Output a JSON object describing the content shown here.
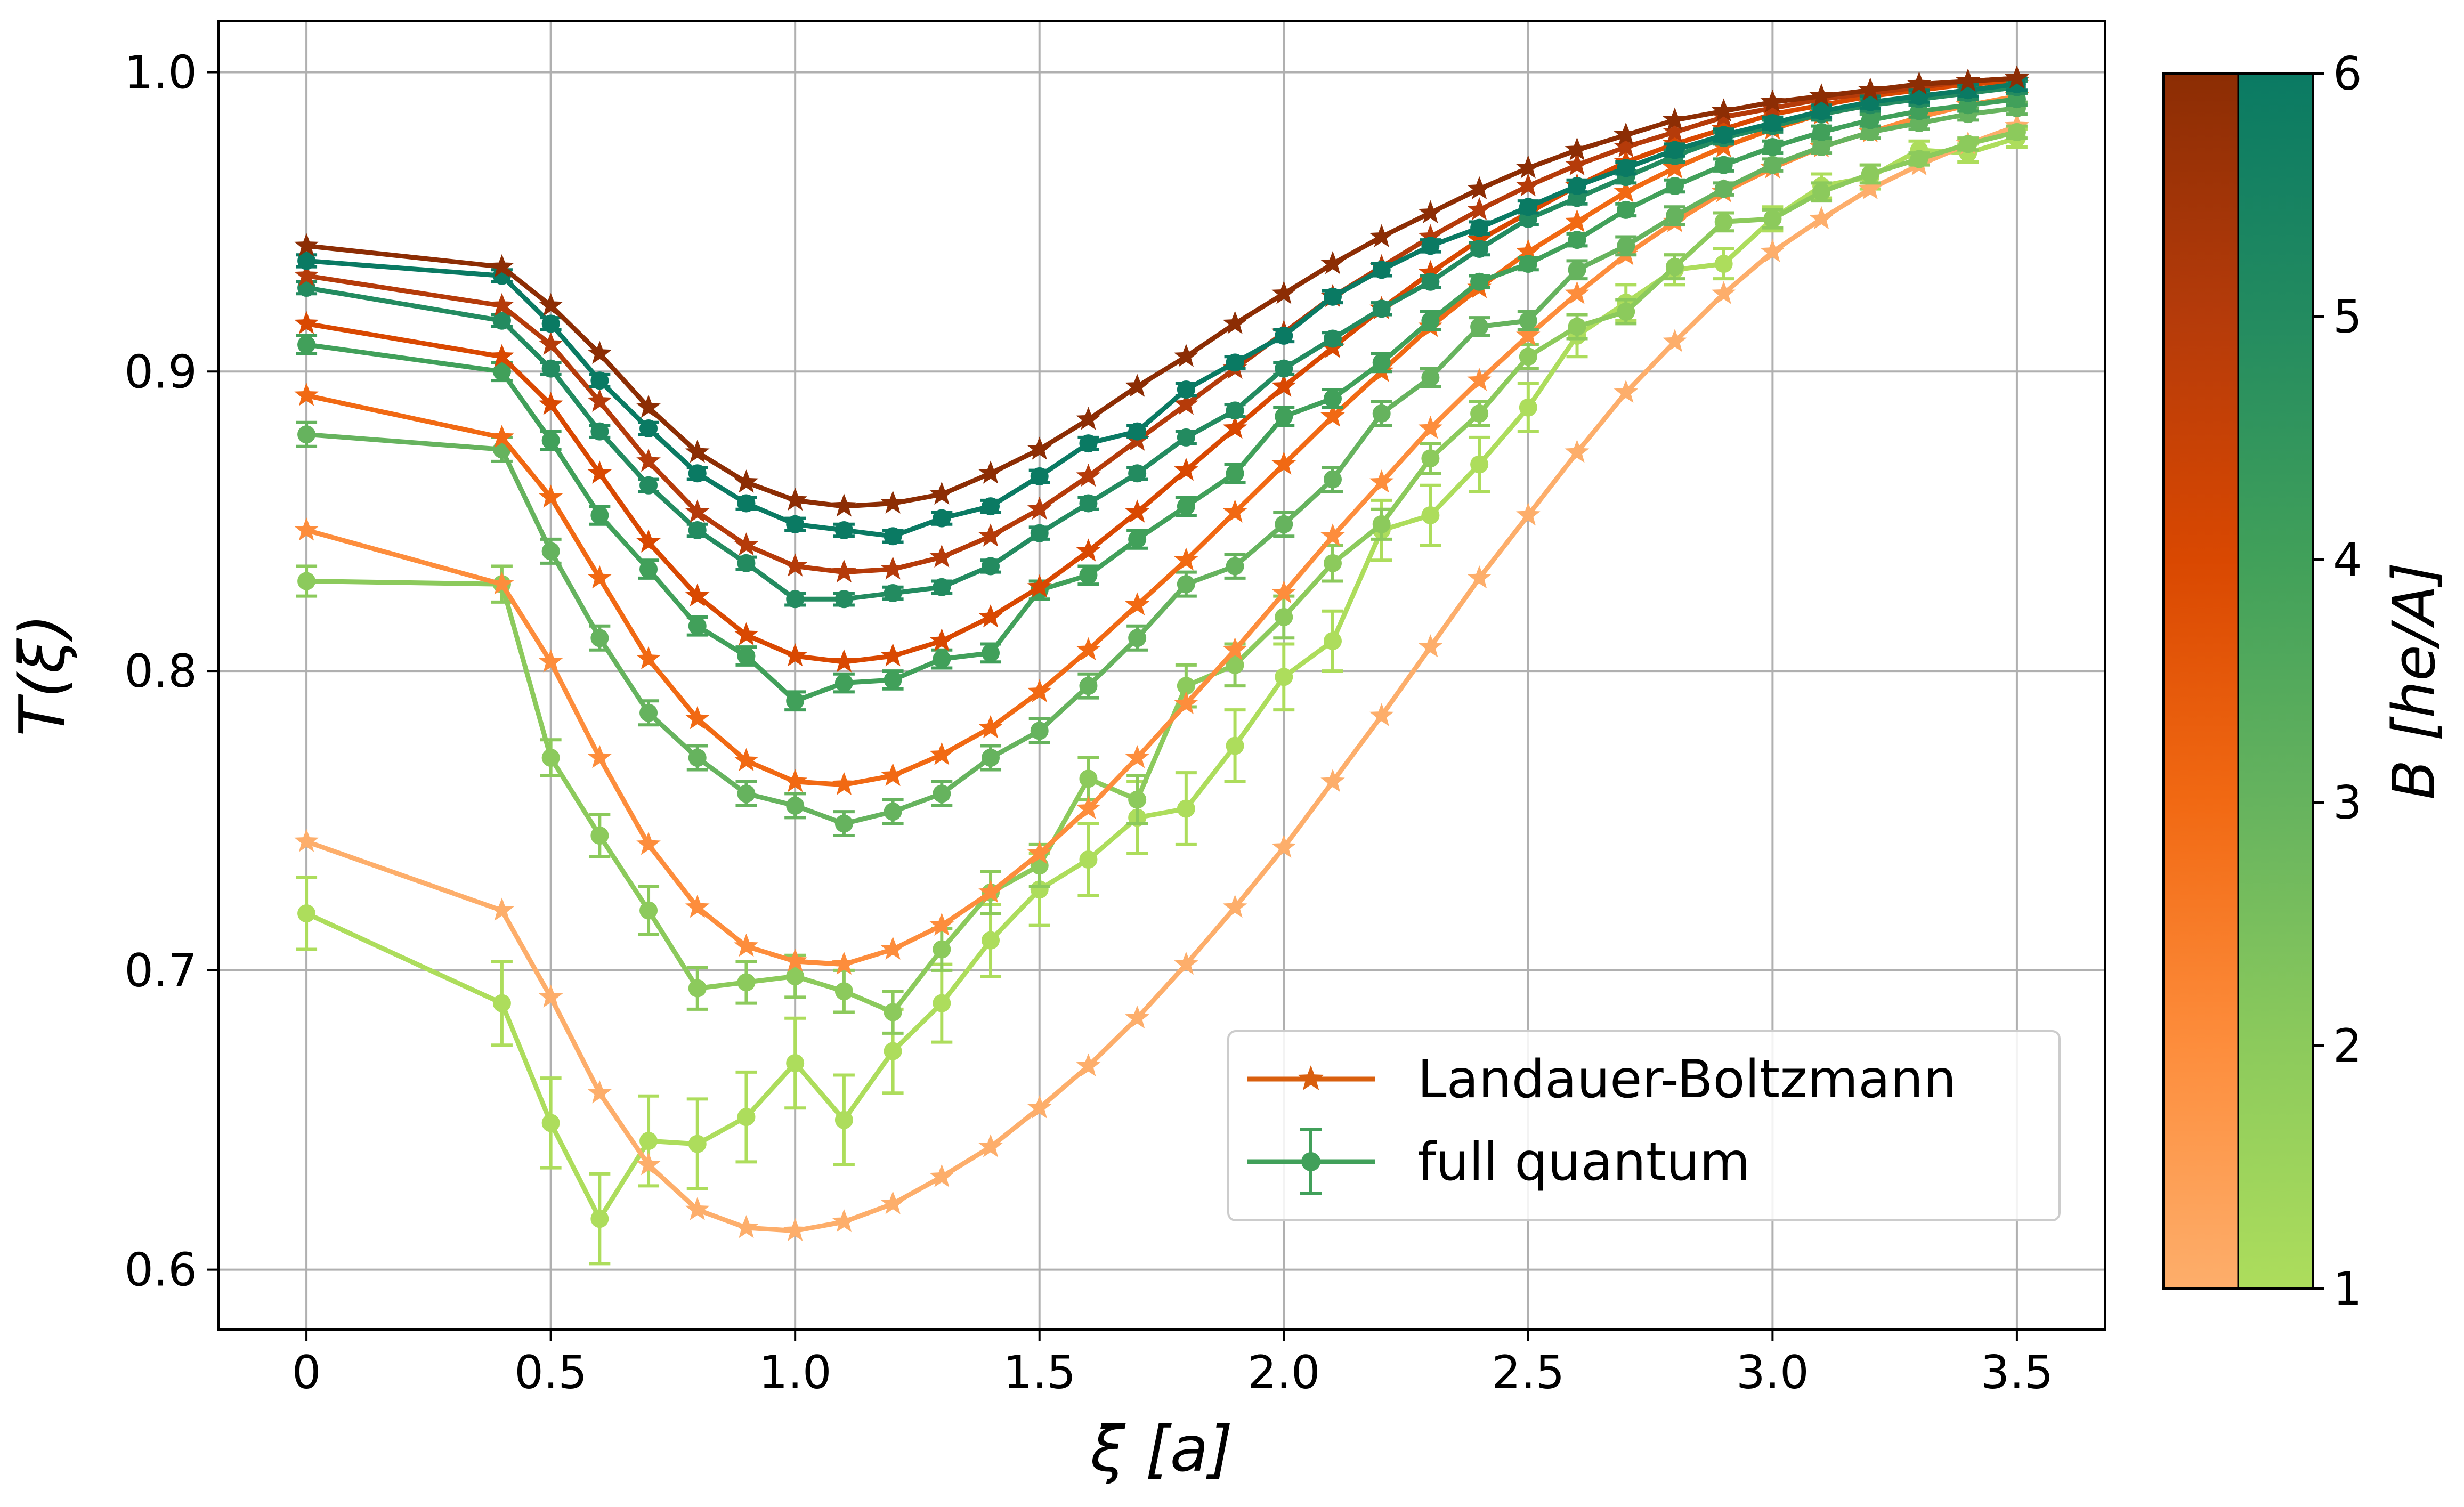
{
  "chart_data": {
    "type": "line",
    "xlabel": "ξ [a]",
    "ylabel": "T(ξ)",
    "xlim": [
      -0.18,
      3.68
    ],
    "ylim": [
      0.58,
      1.017
    ],
    "x_ticks": [
      "0",
      "0.5",
      "1.0",
      "1.5",
      "2.0",
      "2.5",
      "3.0",
      "3.5"
    ],
    "x_tick_values": [
      0,
      0.5,
      1.0,
      1.5,
      2.0,
      2.5,
      3.0,
      3.5
    ],
    "y_ticks": [
      "0.6",
      "0.7",
      "0.8",
      "0.9",
      "1.0"
    ],
    "y_tick_values": [
      0.6,
      0.7,
      0.8,
      0.9,
      1.0
    ],
    "grid": true,
    "legend_position": "lower-right",
    "legend": [
      {
        "label": "Landauer-Boltzmann",
        "color": "#d95f0e",
        "marker": "star"
      },
      {
        "label": "full quantum",
        "color": "#41a05a",
        "marker": "circle-errorbar"
      }
    ],
    "x": [
      0,
      0.4,
      0.5,
      0.6,
      0.7,
      0.8,
      0.9,
      1.0,
      1.1,
      1.2,
      1.3,
      1.4,
      1.5,
      1.6,
      1.7,
      1.8,
      1.9,
      2.0,
      2.1,
      2.2,
      2.3,
      2.4,
      2.5,
      2.6,
      2.7,
      2.8,
      2.9,
      3.0,
      3.1,
      3.2,
      3.3,
      3.4,
      3.5
    ],
    "series_landauer_boltzmann": [
      {
        "name": "B=1",
        "color": "#fdae6b",
        "values": [
          0.743,
          0.72,
          0.691,
          0.659,
          0.635,
          0.62,
          0.614,
          0.613,
          0.616,
          0.622,
          0.631,
          0.641,
          0.654,
          0.668,
          0.684,
          0.702,
          0.721,
          0.741,
          0.763,
          0.785,
          0.808,
          0.831,
          0.852,
          0.873,
          0.893,
          0.91,
          0.926,
          0.94,
          0.951,
          0.961,
          0.969,
          0.976,
          0.982
        ]
      },
      {
        "name": "B=2",
        "color": "#fd8d3c",
        "values": [
          0.847,
          0.829,
          0.803,
          0.771,
          0.742,
          0.721,
          0.708,
          0.703,
          0.702,
          0.707,
          0.715,
          0.726,
          0.739,
          0.754,
          0.771,
          0.789,
          0.807,
          0.826,
          0.845,
          0.863,
          0.881,
          0.897,
          0.912,
          0.926,
          0.939,
          0.95,
          0.96,
          0.968,
          0.975,
          0.98,
          0.985,
          0.989,
          0.992
        ]
      },
      {
        "name": "B=3",
        "color": "#f16913",
        "values": [
          0.892,
          0.878,
          0.858,
          0.831,
          0.804,
          0.784,
          0.77,
          0.763,
          0.762,
          0.765,
          0.772,
          0.781,
          0.793,
          0.807,
          0.822,
          0.837,
          0.853,
          0.869,
          0.885,
          0.9,
          0.915,
          0.928,
          0.94,
          0.95,
          0.96,
          0.968,
          0.975,
          0.981,
          0.986,
          0.989,
          0.992,
          0.994,
          0.996
        ]
      },
      {
        "name": "B=4",
        "color": "#d94801",
        "values": [
          0.916,
          0.905,
          0.889,
          0.866,
          0.843,
          0.825,
          0.812,
          0.805,
          0.803,
          0.805,
          0.81,
          0.818,
          0.828,
          0.84,
          0.853,
          0.867,
          0.881,
          0.895,
          0.908,
          0.921,
          0.933,
          0.944,
          0.953,
          0.962,
          0.97,
          0.976,
          0.981,
          0.986,
          0.989,
          0.992,
          0.994,
          0.996,
          0.997
        ]
      },
      {
        "name": "B=5",
        "color": "#b53b0a",
        "values": [
          0.932,
          0.922,
          0.909,
          0.89,
          0.87,
          0.853,
          0.842,
          0.835,
          0.833,
          0.834,
          0.838,
          0.845,
          0.854,
          0.865,
          0.877,
          0.889,
          0.901,
          0.913,
          0.925,
          0.935,
          0.945,
          0.954,
          0.962,
          0.969,
          0.975,
          0.98,
          0.985,
          0.988,
          0.991,
          0.993,
          0.995,
          0.997,
          0.998
        ]
      },
      {
        "name": "B=6",
        "color": "#8c2d04",
        "values": [
          0.942,
          0.935,
          0.922,
          0.906,
          0.888,
          0.873,
          0.863,
          0.857,
          0.855,
          0.856,
          0.859,
          0.866,
          0.874,
          0.884,
          0.895,
          0.905,
          0.916,
          0.926,
          0.936,
          0.945,
          0.953,
          0.961,
          0.968,
          0.974,
          0.979,
          0.984,
          0.987,
          0.99,
          0.992,
          0.994,
          0.996,
          0.997,
          0.998
        ]
      }
    ],
    "series_full_quantum": [
      {
        "name": "B=1",
        "color": "#addd5c",
        "values": [
          0.719,
          0.689,
          0.649,
          0.617,
          0.643,
          0.642,
          0.651,
          0.669,
          0.65,
          0.673,
          0.689,
          0.71,
          0.727,
          0.737,
          0.751,
          0.754,
          0.775,
          0.798,
          0.81,
          0.847,
          0.852,
          0.869,
          0.888,
          0.912,
          0.923,
          0.934,
          0.936,
          0.951,
          0.962,
          0.965,
          0.974,
          0.973,
          0.978
        ],
        "errors": [
          0.012,
          0.014,
          0.015,
          0.015,
          0.015,
          0.015,
          0.015,
          0.015,
          0.015,
          0.014,
          0.013,
          0.012,
          0.012,
          0.012,
          0.012,
          0.012,
          0.012,
          0.011,
          0.01,
          0.01,
          0.01,
          0.009,
          0.008,
          0.007,
          0.006,
          0.005,
          0.005,
          0.004,
          0.004,
          0.004,
          0.003,
          0.003,
          0.003
        ]
      },
      {
        "name": "B=2",
        "color": "#8cca5c",
        "values": [
          0.83,
          0.829,
          0.771,
          0.745,
          0.72,
          0.694,
          0.696,
          0.698,
          0.693,
          0.686,
          0.707,
          0.726,
          0.735,
          0.764,
          0.757,
          0.795,
          0.802,
          0.818,
          0.836,
          0.849,
          0.871,
          0.886,
          0.905,
          0.915,
          0.92,
          0.935,
          0.95,
          0.951,
          0.96,
          0.966,
          0.971,
          0.976,
          0.98
        ],
        "errors": [
          0.005,
          0.006,
          0.006,
          0.007,
          0.008,
          0.007,
          0.007,
          0.007,
          0.007,
          0.007,
          0.007,
          0.007,
          0.007,
          0.007,
          0.008,
          0.007,
          0.007,
          0.007,
          0.006,
          0.005,
          0.005,
          0.004,
          0.004,
          0.004,
          0.004,
          0.004,
          0.003,
          0.003,
          0.003,
          0.003,
          0.002,
          0.002,
          0.002
        ]
      },
      {
        "name": "B=3",
        "color": "#66b35e",
        "values": [
          0.879,
          0.874,
          0.84,
          0.811,
          0.786,
          0.771,
          0.759,
          0.755,
          0.749,
          0.753,
          0.759,
          0.771,
          0.78,
          0.795,
          0.811,
          0.829,
          0.835,
          0.849,
          0.864,
          0.886,
          0.898,
          0.915,
          0.917,
          0.934,
          0.942,
          0.952,
          0.961,
          0.969,
          0.975,
          0.98,
          0.983,
          0.986,
          0.988
        ],
        "errors": [
          0.004,
          0.004,
          0.004,
          0.004,
          0.004,
          0.004,
          0.004,
          0.004,
          0.004,
          0.004,
          0.004,
          0.004,
          0.004,
          0.004,
          0.004,
          0.004,
          0.004,
          0.004,
          0.004,
          0.004,
          0.003,
          0.003,
          0.003,
          0.003,
          0.003,
          0.003,
          0.002,
          0.002,
          0.002,
          0.002,
          0.002,
          0.002,
          0.002
        ]
      },
      {
        "name": "B=4",
        "color": "#41a05a",
        "values": [
          0.909,
          0.9,
          0.877,
          0.852,
          0.834,
          0.815,
          0.805,
          0.79,
          0.796,
          0.797,
          0.804,
          0.806,
          0.827,
          0.832,
          0.844,
          0.855,
          0.866,
          0.885,
          0.891,
          0.903,
          0.917,
          0.93,
          0.936,
          0.944,
          0.954,
          0.962,
          0.969,
          0.975,
          0.98,
          0.984,
          0.987,
          0.989,
          0.991
        ],
        "errors": [
          0.003,
          0.003,
          0.003,
          0.003,
          0.003,
          0.003,
          0.003,
          0.003,
          0.003,
          0.003,
          0.003,
          0.003,
          0.003,
          0.003,
          0.003,
          0.003,
          0.003,
          0.003,
          0.003,
          0.003,
          0.003,
          0.002,
          0.002,
          0.002,
          0.002,
          0.002,
          0.002,
          0.002,
          0.002,
          0.002,
          0.002,
          0.002,
          0.002
        ]
      },
      {
        "name": "B=5",
        "color": "#238b60",
        "values": [
          0.928,
          0.917,
          0.901,
          0.88,
          0.862,
          0.847,
          0.836,
          0.824,
          0.824,
          0.826,
          0.828,
          0.835,
          0.846,
          0.856,
          0.866,
          0.878,
          0.887,
          0.901,
          0.911,
          0.921,
          0.93,
          0.941,
          0.951,
          0.958,
          0.965,
          0.972,
          0.978,
          0.982,
          0.986,
          0.989,
          0.991,
          0.993,
          0.995
        ],
        "errors": [
          0.002,
          0.002,
          0.002,
          0.002,
          0.002,
          0.002,
          0.002,
          0.002,
          0.002,
          0.002,
          0.002,
          0.002,
          0.002,
          0.002,
          0.002,
          0.002,
          0.002,
          0.002,
          0.002,
          0.002,
          0.002,
          0.002,
          0.002,
          0.002,
          0.002,
          0.002,
          0.002,
          0.002,
          0.002,
          0.002,
          0.002,
          0.002,
          0.002
        ]
      },
      {
        "name": "B=6",
        "color": "#0a7a63",
        "values": [
          0.937,
          0.932,
          0.916,
          0.897,
          0.881,
          0.866,
          0.856,
          0.849,
          0.847,
          0.845,
          0.851,
          0.855,
          0.865,
          0.876,
          0.88,
          0.894,
          0.903,
          0.912,
          0.925,
          0.934,
          0.942,
          0.948,
          0.955,
          0.962,
          0.968,
          0.974,
          0.979,
          0.983,
          0.987,
          0.99,
          0.992,
          0.994,
          0.996
        ],
        "errors": [
          0.002,
          0.002,
          0.002,
          0.002,
          0.002,
          0.002,
          0.002,
          0.002,
          0.002,
          0.002,
          0.002,
          0.002,
          0.002,
          0.002,
          0.002,
          0.002,
          0.002,
          0.002,
          0.002,
          0.002,
          0.002,
          0.002,
          0.002,
          0.002,
          0.002,
          0.002,
          0.002,
          0.002,
          0.002,
          0.002,
          0.002,
          0.002,
          0.002
        ]
      }
    ],
    "colorbar": {
      "label": "B [he/A]",
      "range": [
        1,
        6
      ],
      "ticks": [
        "1",
        "2",
        "3",
        "4",
        "5",
        "6"
      ],
      "tick_values": [
        1,
        2,
        3,
        4,
        5,
        6
      ],
      "left_colors": [
        "#fdae6b",
        "#fd8d3c",
        "#f16913",
        "#d94801",
        "#b53b0a",
        "#8c2d04"
      ],
      "right_colors": [
        "#addd5c",
        "#8cca5c",
        "#66b35e",
        "#41a05a",
        "#238b60",
        "#0a7a63"
      ]
    }
  }
}
